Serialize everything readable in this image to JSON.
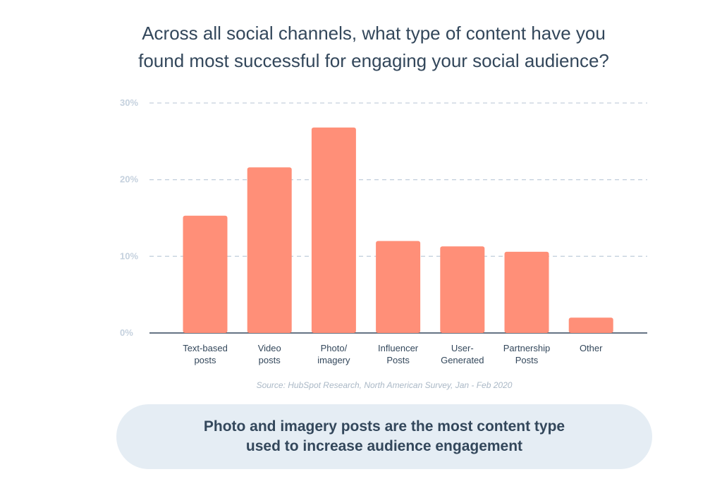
{
  "title": "Across all social channels, what type of content have you\nfound most successful for engaging your social audience?",
  "source": "Source: HubSpot Research, North American Survey, Jan - Feb 2020",
  "callout": "Photo and imagery posts are the most content type\nused to increase audience engagement",
  "colors": {
    "bar": "#ff8f78",
    "text": "#33475b",
    "grid": "#c5d1de",
    "callout_bg": "#e5edf4"
  },
  "chart_data": {
    "type": "bar",
    "categories": [
      [
        "Text-based",
        "posts"
      ],
      [
        "Video",
        "posts"
      ],
      [
        "Photo/",
        "imagery"
      ],
      [
        "Influencer",
        "Posts"
      ],
      [
        "User-",
        "Generated"
      ],
      [
        "Partnership",
        "Posts"
      ],
      [
        "Other"
      ]
    ],
    "values": [
      15.3,
      21.6,
      26.8,
      12.0,
      11.3,
      10.6,
      2.0
    ],
    "ylim": [
      0,
      30
    ],
    "yticks": [
      0,
      10,
      20,
      30
    ],
    "ytick_labels": [
      "0%",
      "10%",
      "20%",
      "30%"
    ],
    "grid": true
  }
}
